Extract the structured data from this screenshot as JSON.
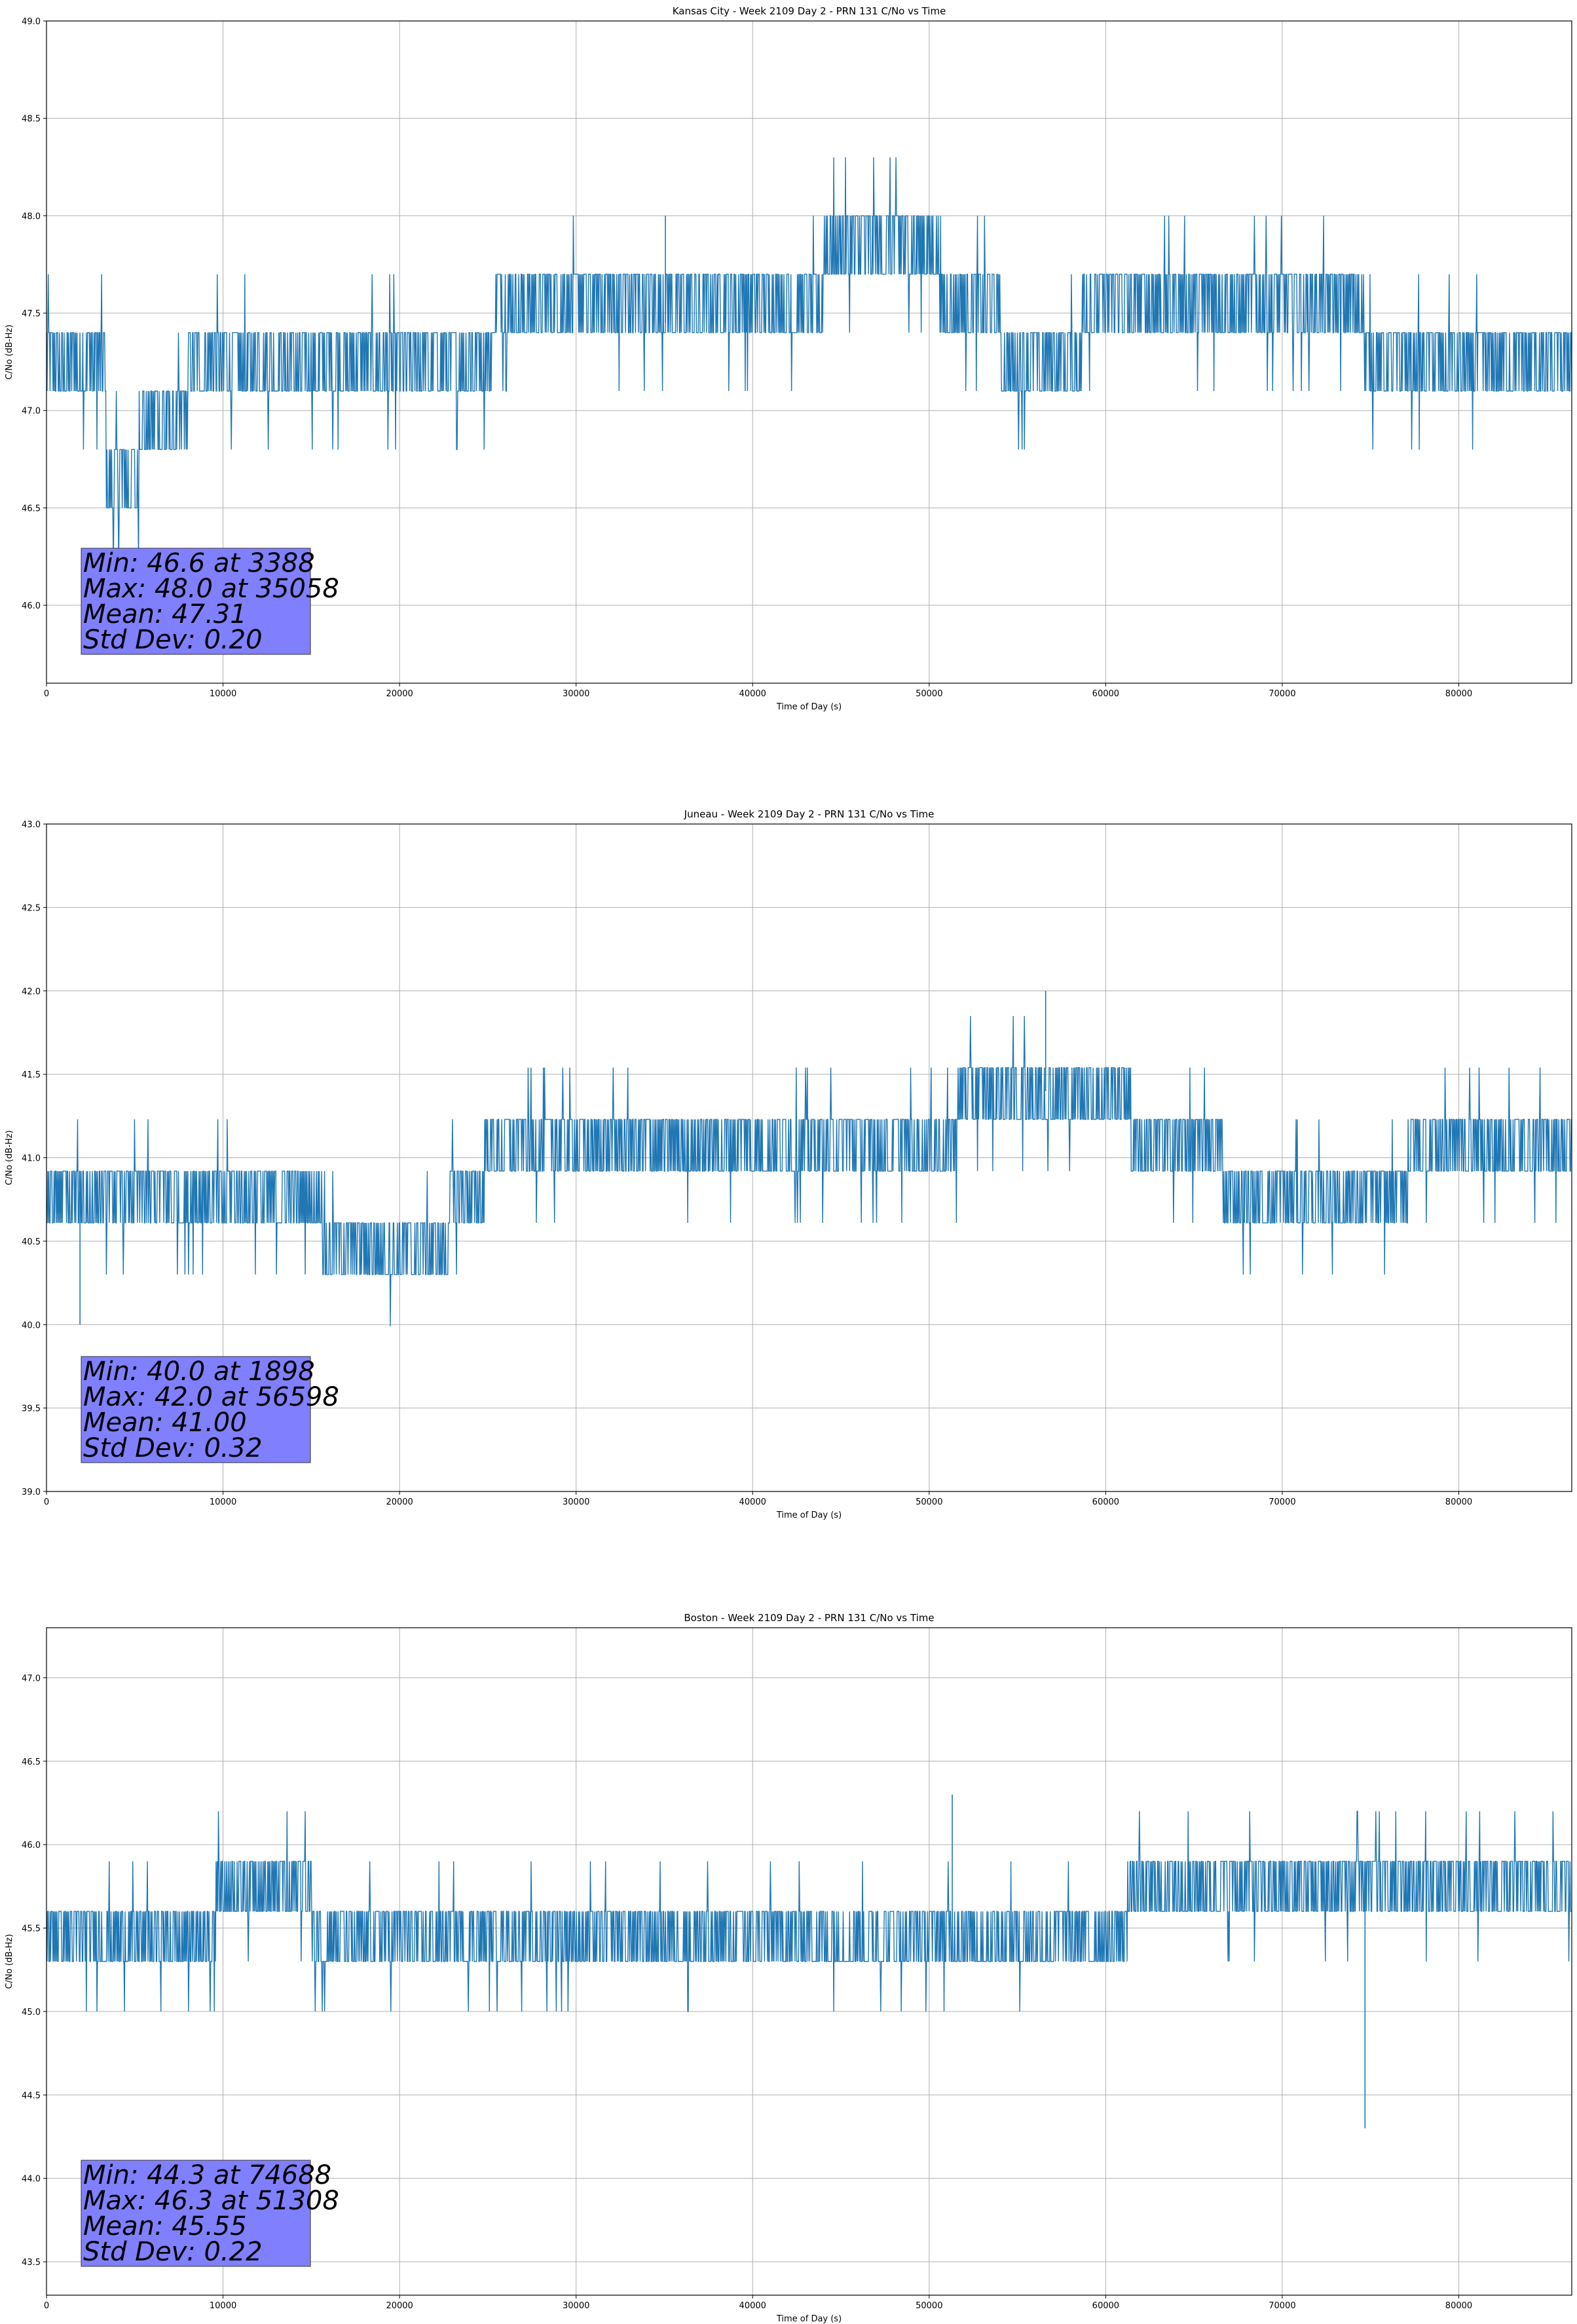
{
  "chart_data": [
    {
      "type": "line",
      "title": "Kansas City - Week 2109 Day 2 - PRN 131 C/No vs Time",
      "xlabel": "Time of Day (s)",
      "ylabel": "C/No (dB-Hz)",
      "xlim": [
        0,
        86400
      ],
      "ylim": [
        45.6,
        49.0
      ],
      "xticks": [
        0,
        10000,
        20000,
        30000,
        40000,
        50000,
        60000,
        70000,
        80000
      ],
      "yticks": [
        "46.0",
        "46.5",
        "47.0",
        "47.5",
        "48.0",
        "48.5",
        "49.0"
      ],
      "grid": true,
      "color": "#1f77b4",
      "series": [
        {
          "x": [
            0,
            3000,
            3300,
            3388,
            8500,
            12000,
            20000,
            28000,
            35058,
            40000,
            43000,
            45000,
            50000,
            52000,
            56000,
            60000,
            68000,
            72000,
            80000,
            86400
          ],
          "y": [
            47.15,
            47.15,
            47.2,
            46.6,
            47.15,
            47.3,
            47.3,
            47.45,
            47.45,
            47.5,
            47.6,
            47.8,
            47.8,
            47.5,
            47.3,
            47.45,
            47.4,
            47.45,
            47.3,
            47.15
          ]
        }
      ],
      "stats": [
        "Min: 46.6 at 3388",
        "Max: 48.0 at 35058",
        "Mean: 47.31",
        "Std Dev: 0.20"
      ]
    },
    {
      "type": "line",
      "title": "Juneau - Week 2109 Day 2 - PRN 131 C/No vs Time",
      "xlabel": "Time of Day (s)",
      "ylabel": "C/No (dB-Hz)",
      "xlim": [
        0,
        86400
      ],
      "ylim": [
        39.0,
        43.0
      ],
      "xticks": [
        0,
        10000,
        20000,
        30000,
        40000,
        50000,
        60000,
        70000,
        80000
      ],
      "yticks": [
        "39.0",
        "39.5",
        "40.0",
        "40.5",
        "41.0",
        "41.5",
        "42.0",
        "42.5",
        "43.0"
      ],
      "grid": true,
      "color": "#1f77b4",
      "series": [
        {
          "x": [
            0,
            1898,
            8000,
            15000,
            16000,
            18000,
            22000,
            24000,
            26000,
            30000,
            40000,
            50000,
            53000,
            56598,
            60000,
            63000,
            68000,
            72000,
            76000,
            80000,
            86400
          ],
          "y": [
            40.8,
            40.8,
            40.8,
            40.9,
            40.45,
            40.4,
            40.5,
            40.8,
            41.1,
            41.1,
            41.1,
            41.1,
            41.35,
            41.4,
            41.35,
            41.1,
            40.85,
            40.7,
            40.85,
            41.1,
            41.0
          ]
        }
      ],
      "stats": [
        "Min: 40.0 at 1898",
        "Max: 42.0 at 56598",
        "Mean: 41.00",
        "Std Dev: 0.32"
      ]
    },
    {
      "type": "line",
      "title": "Boston - Week 2109 Day 2 - PRN 131 C/No vs Time",
      "xlabel": "Time of Day (s)",
      "ylabel": "C/No (dB-Hz)",
      "xlim": [
        0,
        86400
      ],
      "ylim": [
        43.3,
        47.3
      ],
      "xticks": [
        0,
        10000,
        20000,
        30000,
        40000,
        50000,
        60000,
        70000,
        80000
      ],
      "yticks": [
        "43.5",
        "44.0",
        "44.5",
        "45.0",
        "45.5",
        "46.0",
        "46.5",
        "47.0"
      ],
      "grid": true,
      "color": "#1f77b4",
      "series": [
        {
          "x": [
            0,
            9000,
            10000,
            20000,
            24000,
            30000,
            40000,
            51308,
            55000,
            61000,
            61500,
            70000,
            74688,
            80000,
            86400
          ],
          "y": [
            45.45,
            45.45,
            45.7,
            45.5,
            45.3,
            45.45,
            45.45,
            45.45,
            45.45,
            45.45,
            45.8,
            45.8,
            45.8,
            45.8,
            45.8
          ]
        }
      ],
      "stats": [
        "Min: 44.3 at 74688",
        "Max: 46.3 at 51308",
        "Mean: 45.55",
        "Std Dev: 0.22"
      ]
    }
  ]
}
